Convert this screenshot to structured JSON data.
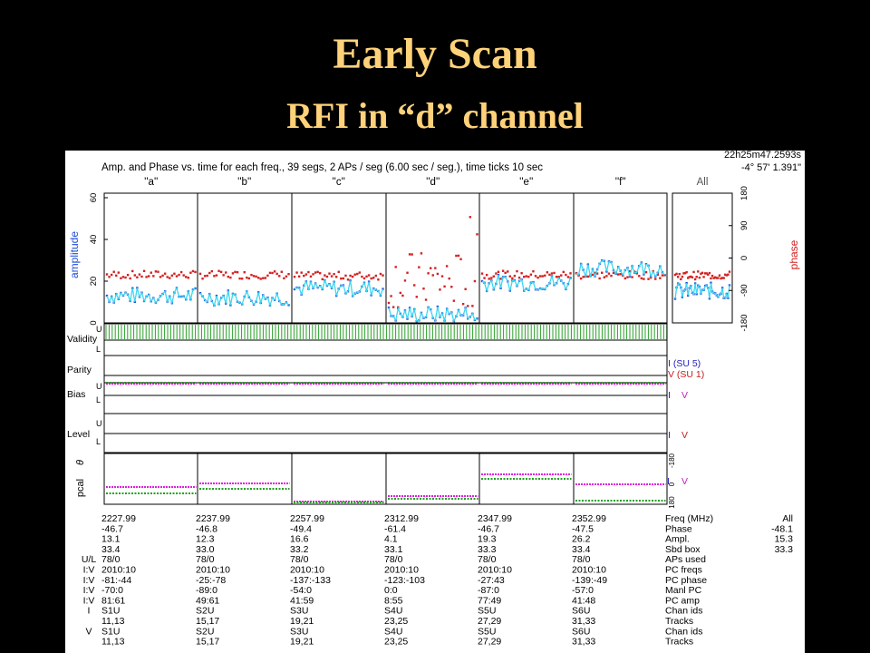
{
  "slide": {
    "title": "Early Scan",
    "subtitle": "RFI in “d” channel"
  },
  "plot": {
    "header": "Amp. and Phase vs. time for each freq., 39 segs, 2 APs / seg (6.00 sec / seg.), time ticks 10 sec",
    "coord_ra": "22h25m47.2593s",
    "coord_dec": "-4° 57' 1.391\"",
    "channels": [
      "''a''",
      "''b''",
      "''c''",
      "''d''",
      "''e''",
      "''f''"
    ],
    "all_label": "All",
    "left_axis_label": "amplitude",
    "right_axis_label": "phase",
    "left_ticks": [
      "0",
      "20",
      "40",
      "60"
    ],
    "right_ticks": [
      "-180",
      "-90",
      "0",
      "90",
      "180"
    ],
    "strip_labels": {
      "validity": "Validity",
      "parity": "Parity",
      "bias": "Bias",
      "level": "Level",
      "pcal": "pcal",
      "theta": "θ",
      "u": "U",
      "l": "L"
    },
    "legend": {
      "i_su": "I (SU 5)",
      "v_su": "V (SU 1)",
      "i": "I",
      "v": "V",
      "pcal_ticks": [
        "-180",
        "0",
        "180"
      ]
    },
    "colors": {
      "amplitude": "#1f4fd8",
      "amplitude_line": "#3cd8f0",
      "phase": "#d42020",
      "validity": "#2aa02a",
      "pcal_magenta": "#e020e0",
      "pcal_green": "#20a020",
      "legend_i": "#2020c0",
      "legend_v": "#c02020"
    }
  },
  "chart_data": [
    {
      "type": "scatter",
      "title": "Amp. and Phase vs. time for each freq., 39 segs, 2 APs / seg (6.00 sec / seg.), time ticks 10 sec",
      "categories": [
        "''a''",
        "''b''",
        "''c''",
        "''d''",
        "''e''",
        "''f''",
        "All"
      ],
      "ylabel": "amplitude",
      "y2label": "phase",
      "ylim": [
        0,
        60
      ],
      "y2lim": [
        -180,
        180
      ],
      "series": [
        {
          "name": "amplitude",
          "approx_mean": [
            13.1,
            12.3,
            16.6,
            4.1,
            19.3,
            26.2,
            15.3
          ]
        },
        {
          "name": "phase",
          "approx_mean": [
            -46.7,
            -46.8,
            -49.4,
            -61.4,
            -46.7,
            -47.5,
            -48.1
          ]
        }
      ]
    },
    {
      "type": "table",
      "columns": [
        "a",
        "b",
        "c",
        "d",
        "e",
        "f",
        "labels",
        "All"
      ],
      "rows": [
        {
          "left": "",
          "cells": [
            "2227.99",
            "2237.99",
            "2257.99",
            "2312.99",
            "2347.99",
            "2352.99"
          ],
          "label": "Freq (MHz)",
          "all": "All"
        },
        {
          "left": "",
          "cells": [
            "-46.7",
            "-46.8",
            "-49.4",
            "-61.4",
            "-46.7",
            "-47.5"
          ],
          "label": "Phase",
          "all": "-48.1"
        },
        {
          "left": "",
          "cells": [
            "13.1",
            "12.3",
            "16.6",
            "4.1",
            "19.3",
            "26.2"
          ],
          "label": "Ampl.",
          "all": "15.3"
        },
        {
          "left": "",
          "cells": [
            "33.4",
            "33.0",
            "33.2",
            "33.1",
            "33.3",
            "33.4"
          ],
          "label": "Sbd box",
          "all": "33.3"
        },
        {
          "left": "U/L",
          "cells": [
            "78/0",
            "78/0",
            "78/0",
            "78/0",
            "78/0",
            "78/0"
          ],
          "label": "APs used",
          "all": ""
        },
        {
          "left": "I:V",
          "cells": [
            "2010:10",
            "2010:10",
            "2010:10",
            "2010:10",
            "2010:10",
            "2010:10"
          ],
          "label": "PC freqs",
          "all": ""
        },
        {
          "left": "I:V",
          "cells": [
            "-81:-44",
            "-25:-78",
            "-137:-133",
            "-123:-103",
            "-27:43",
            "-139:-49"
          ],
          "label": "PC phase",
          "all": ""
        },
        {
          "left": "I:V",
          "cells": [
            "-70:0",
            "-89:0",
            "-54:0",
            "0:0",
            "-87:0",
            "-57:0"
          ],
          "label": "Manl PC",
          "all": ""
        },
        {
          "left": "I:V",
          "cells": [
            "81:61",
            "49:61",
            "41:59",
            "8:55",
            "77:49",
            "41:48"
          ],
          "label": "PC amp",
          "all": ""
        },
        {
          "left": "I",
          "cells": [
            "S1U",
            "S2U",
            "S3U",
            "S4U",
            "S5U",
            "S6U"
          ],
          "label": "Chan ids",
          "all": ""
        },
        {
          "left": "",
          "cells": [
            "11,13",
            "15,17",
            "19,21",
            "23,25",
            "27,29",
            "31,33"
          ],
          "label": "Tracks",
          "all": ""
        },
        {
          "left": "V",
          "cells": [
            "S1U",
            "S2U",
            "S3U",
            "S4U",
            "S5U",
            "S6U"
          ],
          "label": "Chan ids",
          "all": ""
        },
        {
          "left": "",
          "cells": [
            "11,13",
            "15,17",
            "19,21",
            "23,25",
            "27,29",
            "31,33"
          ],
          "label": "Tracks",
          "all": ""
        }
      ]
    }
  ]
}
